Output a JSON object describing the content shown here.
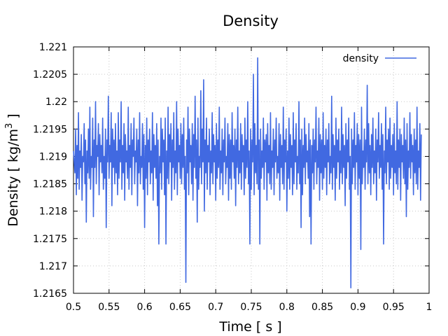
{
  "chart_data": {
    "type": "line",
    "title": "Density",
    "xlabel": "Time [ s ]",
    "ylabel_main": "Density [ kg/m",
    "ylabel_sup": "3",
    "ylabel_end": " ]",
    "xlim": [
      0.5,
      1.0
    ],
    "ylim": [
      1.2165,
      1.221
    ],
    "xticks": [
      "0.5",
      "0.55",
      "0.6",
      "0.65",
      "0.7",
      "0.75",
      "0.8",
      "0.85",
      "0.9",
      "0.95",
      "1"
    ],
    "yticks": [
      "1.2165",
      "1.217",
      "1.2175",
      "1.218",
      "1.2185",
      "1.219",
      "1.2195",
      "1.22",
      "1.2205",
      "1.221"
    ],
    "grid": true,
    "legend_position": "top-right",
    "series": [
      {
        "name": "density",
        "color": "#4169e1",
        "x_start": 0.5,
        "x_step": 0.001,
        "values": [
          1.2191,
          1.2189,
          1.2187,
          1.2195,
          1.2183,
          1.2192,
          1.2186,
          1.2198,
          1.2184,
          1.2191,
          1.2188,
          1.2194,
          1.2182,
          1.219,
          1.2189,
          1.2196,
          1.2185,
          1.2193,
          1.2178,
          1.2191,
          1.2187,
          1.2195,
          1.2186,
          1.2199,
          1.2184,
          1.219,
          1.2188,
          1.2197,
          1.2179,
          1.2193,
          1.2188,
          1.22,
          1.2185,
          1.2192,
          1.219,
          1.2196,
          1.2183,
          1.2194,
          1.2189,
          1.2192,
          1.2187,
          1.2197,
          1.2184,
          1.219,
          1.2186,
          1.2195,
          1.2177,
          1.2193,
          1.2189,
          1.2201,
          1.2186,
          1.2192,
          1.2189,
          1.2198,
          1.2181,
          1.2195,
          1.2188,
          1.2193,
          1.2185,
          1.2196,
          1.2187,
          1.2191,
          1.2183,
          1.2198,
          1.2186,
          1.2193,
          1.2189,
          1.22,
          1.2184,
          1.2192,
          1.2187,
          1.2196,
          1.2182,
          1.2194,
          1.2189,
          1.2191,
          1.2186,
          1.2199,
          1.2184,
          1.2192,
          1.2188,
          1.2196,
          1.2183,
          1.2193,
          1.219,
          1.2197,
          1.2185,
          1.2191,
          1.2189,
          1.2195,
          1.2181,
          1.2193,
          1.2187,
          1.2198,
          1.2185,
          1.219,
          1.2188,
          1.2196,
          1.2184,
          1.2194,
          1.2177,
          1.2192,
          1.2186,
          1.2197,
          1.2183,
          1.2193,
          1.2189,
          1.2195,
          1.2185,
          1.2191,
          1.2187,
          1.2198,
          1.2182,
          1.2194,
          1.2188,
          1.2192,
          1.2186,
          1.2196,
          1.2181,
          1.2193,
          1.2174,
          1.219,
          1.2187,
          1.2197,
          1.2184,
          1.2195,
          1.2189,
          1.2193,
          1.2183,
          1.2197,
          1.2174,
          1.2191,
          1.2186,
          1.2199,
          1.2185,
          1.2194,
          1.2189,
          1.2196,
          1.2182,
          1.2193,
          1.2188,
          1.2198,
          1.2184,
          1.2191,
          1.2187,
          1.22,
          1.2183,
          1.2195,
          1.2189,
          1.2192,
          1.2186,
          1.2196,
          1.2185,
          1.2194,
          1.2188,
          1.2197,
          1.2184,
          1.219,
          1.2167,
          1.2193,
          1.2187,
          1.2199,
          1.2183,
          1.2195,
          1.2189,
          1.2192,
          1.2185,
          1.2196,
          1.2182,
          1.2194,
          1.2188,
          1.2201,
          1.2186,
          1.2193,
          1.2178,
          1.2197,
          1.2184,
          1.219,
          1.2188,
          1.2202,
          1.2185,
          1.2195,
          1.2189,
          1.2204,
          1.218,
          1.2193,
          1.2187,
          1.2197,
          1.2184,
          1.2192,
          1.2189,
          1.2195,
          1.2183,
          1.2191,
          1.2187,
          1.2198,
          1.2185,
          1.2194,
          1.2189,
          1.2192,
          1.2182,
          1.2196,
          1.2186,
          1.2193,
          1.2188,
          1.2199,
          1.2184,
          1.2191,
          1.2187,
          1.2195,
          1.2183,
          1.2193,
          1.2189,
          1.2197,
          1.2185,
          1.219,
          1.2188,
          1.2196,
          1.2182,
          1.2194,
          1.2186,
          1.2193,
          1.2184,
          1.2198,
          1.2189,
          1.2192,
          1.2186,
          1.2195,
          1.2181,
          1.2193,
          1.2188,
          1.2199,
          1.2185,
          1.2191,
          1.2187,
          1.2196,
          1.2184,
          1.2194,
          1.2189,
          1.2192,
          1.2183,
          1.2197,
          1.2186,
          1.2193,
          1.2188,
          1.22,
          1.2185,
          1.2191,
          1.2174,
          1.2195,
          1.2184,
          1.2193,
          1.2189,
          1.2205,
          1.2183,
          1.2196,
          1.2187,
          1.2192,
          1.2185,
          1.2208,
          1.2184,
          1.2193,
          1.2174,
          1.2195,
          1.2186,
          1.2191,
          1.2188,
          1.2197,
          1.2184,
          1.2193,
          1.2189,
          1.2194,
          1.2182,
          1.2196,
          1.2187,
          1.2192,
          1.2185,
          1.2198,
          1.2184,
          1.2191,
          1.2188,
          1.2195,
          1.2183,
          1.2193,
          1.2189,
          1.2197,
          1.2186,
          1.219,
          1.2187,
          1.2196,
          1.2182,
          1.2194,
          1.2188,
          1.2192,
          1.2185,
          1.2199,
          1.2184,
          1.2193,
          1.2189,
          1.2195,
          1.218,
          1.2191,
          1.2186,
          1.2197,
          1.2184,
          1.2194,
          1.2188,
          1.2192,
          1.2183,
          1.2198,
          1.2185,
          1.2193,
          1.2189,
          1.2196,
          1.2184,
          1.219,
          1.2187,
          1.22,
          1.2185,
          1.2193,
          1.2177,
          1.2195,
          1.2183,
          1.2192,
          1.2188,
          1.2197,
          1.2185,
          1.2194,
          1.2189,
          1.2191,
          1.2186,
          1.2196,
          1.2179,
          1.2193,
          1.2174,
          1.2192,
          1.2187,
          1.2195,
          1.2184,
          1.2193,
          1.2189,
          1.2199,
          1.2185,
          1.2191,
          1.2188,
          1.2197,
          1.2182,
          1.2194,
          1.2187,
          1.2193,
          1.2184,
          1.2198,
          1.2186,
          1.2192,
          1.2188,
          1.2195,
          1.2183,
          1.2193,
          1.2189,
          1.2196,
          1.2185,
          1.219,
          1.2187,
          1.2201,
          1.2184,
          1.2194,
          1.2188,
          1.2192,
          1.2182,
          1.2197,
          1.2186,
          1.2193,
          1.2189,
          1.2195,
          1.2184,
          1.2191,
          1.2187,
          1.2199,
          1.2185,
          1.2194,
          1.2188,
          1.2192,
          1.2181,
          1.2196,
          1.2186,
          1.2193,
          1.2189,
          1.2197,
          1.2184,
          1.219,
          1.2166,
          1.2195,
          1.2185,
          1.2193,
          1.2188,
          1.2198,
          1.2184,
          1.2192,
          1.2189,
          1.2196,
          1.2183,
          1.2194,
          1.2186,
          1.2193,
          1.2173,
          1.2199,
          1.2185,
          1.2191,
          1.2188,
          1.2195,
          1.2184,
          1.2193,
          1.2189,
          1.2203,
          1.2185,
          1.2196,
          1.2187,
          1.2192,
          1.2183,
          1.2194,
          1.2188,
          1.2197,
          1.2185,
          1.2191,
          1.2187,
          1.2195,
          1.2182,
          1.2193,
          1.2189,
          1.2198,
          1.2186,
          1.2192,
          1.2188,
          1.2196,
          1.2184,
          1.2194,
          1.2174,
          1.2191,
          1.2187,
          1.2199,
          1.2185,
          1.2193,
          1.2189,
          1.2195,
          1.2184,
          1.2197,
          1.2186,
          1.2192,
          1.2188,
          1.2194,
          1.2183,
          1.2196,
          1.2187,
          1.2191,
          1.2185,
          1.22,
          1.2184,
          1.2193,
          1.2188,
          1.2195,
          1.2182,
          1.2194,
          1.2189,
          1.2192,
          1.2186,
          1.2197,
          1.2185,
          1.2193,
          1.2179,
          1.2196,
          1.2184,
          1.2191,
          1.2188,
          1.2198,
          1.2186,
          1.2194,
          1.2189,
          1.2192,
          1.2183,
          1.2195,
          1.2187,
          1.2193,
          1.2185,
          1.2199,
          1.2184,
          1.2191,
          1.2188,
          1.2196,
          1.2182,
          1.2194
        ]
      }
    ]
  }
}
